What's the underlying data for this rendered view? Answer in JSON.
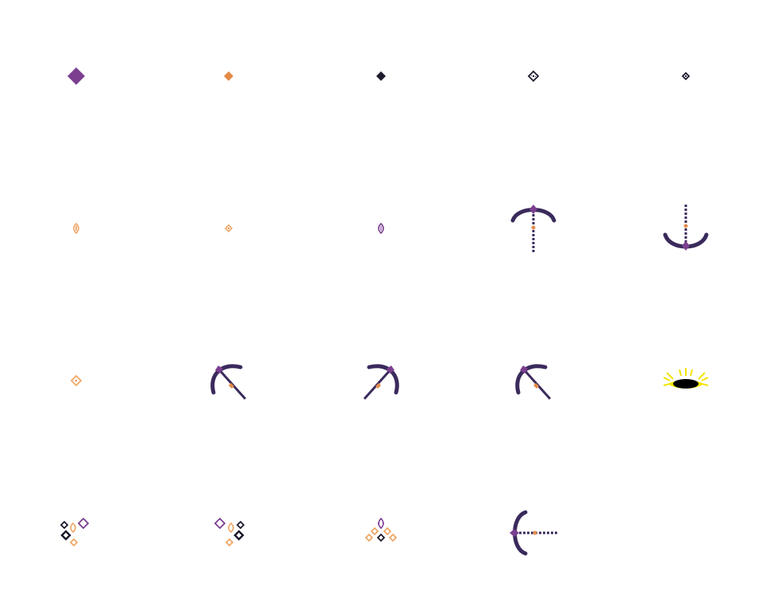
{
  "palette": {
    "purple": "#7b3f8f",
    "orange": "#e38a45",
    "light_orange": "#f0a868",
    "dark": "#1f1b2e",
    "navy": "#3a2a5c",
    "yellow": "#f2e300",
    "black": "#000000",
    "background": "#ffffff"
  },
  "sprites": [
    {
      "name": "purple-diamond-large-icon"
    },
    {
      "name": "orange-diamond-small-icon"
    },
    {
      "name": "dark-diamond-small-icon"
    },
    {
      "name": "checkered-diamond-small-icon"
    },
    {
      "name": "checkered-diamond-tiny-icon"
    },
    {
      "name": "orange-seed-icon"
    },
    {
      "name": "orange-diamond-tiny-icon"
    },
    {
      "name": "purple-seed-icon"
    },
    {
      "name": "crossbow-up-icon"
    },
    {
      "name": "crossbow-down-icon"
    },
    {
      "name": "orange-checkered-diamond-icon"
    },
    {
      "name": "pickaxe-left-icon"
    },
    {
      "name": "pickaxe-right-icon"
    },
    {
      "name": "pickaxe-left-alt-icon"
    },
    {
      "name": "glowing-black-hole-icon"
    },
    {
      "name": "particle-cluster-left-icon"
    },
    {
      "name": "particle-cluster-right-icon"
    },
    {
      "name": "particle-cluster-triangle-icon"
    },
    {
      "name": "crossbow-left-icon"
    }
  ]
}
